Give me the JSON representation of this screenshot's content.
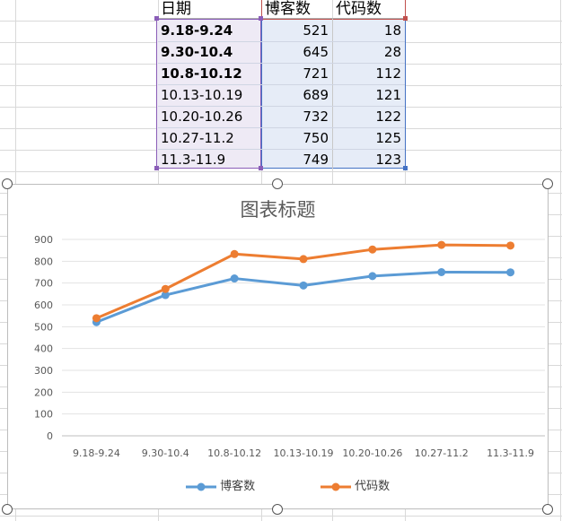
{
  "table": {
    "headers": [
      "日期",
      "博客数",
      "代码数"
    ],
    "rows": [
      {
        "date": "9.18-9.24",
        "blogs": "521",
        "code": "18"
      },
      {
        "date": "9.30-10.4",
        "blogs": "645",
        "code": "28"
      },
      {
        "date": "10.8-10.12",
        "blogs": "721",
        "code": "112"
      },
      {
        "date": "10.13-10.19",
        "blogs": "689",
        "code": "121"
      },
      {
        "date": "10.20-10.26",
        "blogs": "732",
        "code": "122"
      },
      {
        "date": "10.27-11.2",
        "blogs": "750",
        "code": "125"
      },
      {
        "date": "11.3-11.9",
        "blogs": "749",
        "code": "123"
      }
    ]
  },
  "chart_data": {
    "type": "line",
    "title": "图表标题",
    "categories": [
      "9.18-9.24",
      "9.30-10.4",
      "10.8-10.12",
      "10.13-10.19",
      "10.20-10.26",
      "10.27-11.2",
      "11.3-11.9"
    ],
    "series": [
      {
        "name": "博客数",
        "color": "#5b9bd5",
        "values": [
          521,
          645,
          721,
          689,
          732,
          750,
          749
        ]
      },
      {
        "name": "代码数",
        "color": "#ed7d31",
        "values": [
          539,
          673,
          833,
          810,
          854,
          875,
          872
        ]
      }
    ],
    "ylim": [
      0,
      900
    ],
    "yticks": [
      0,
      100,
      200,
      300,
      400,
      500,
      600,
      700,
      800,
      900
    ],
    "grid": true,
    "legend": "bottom"
  }
}
